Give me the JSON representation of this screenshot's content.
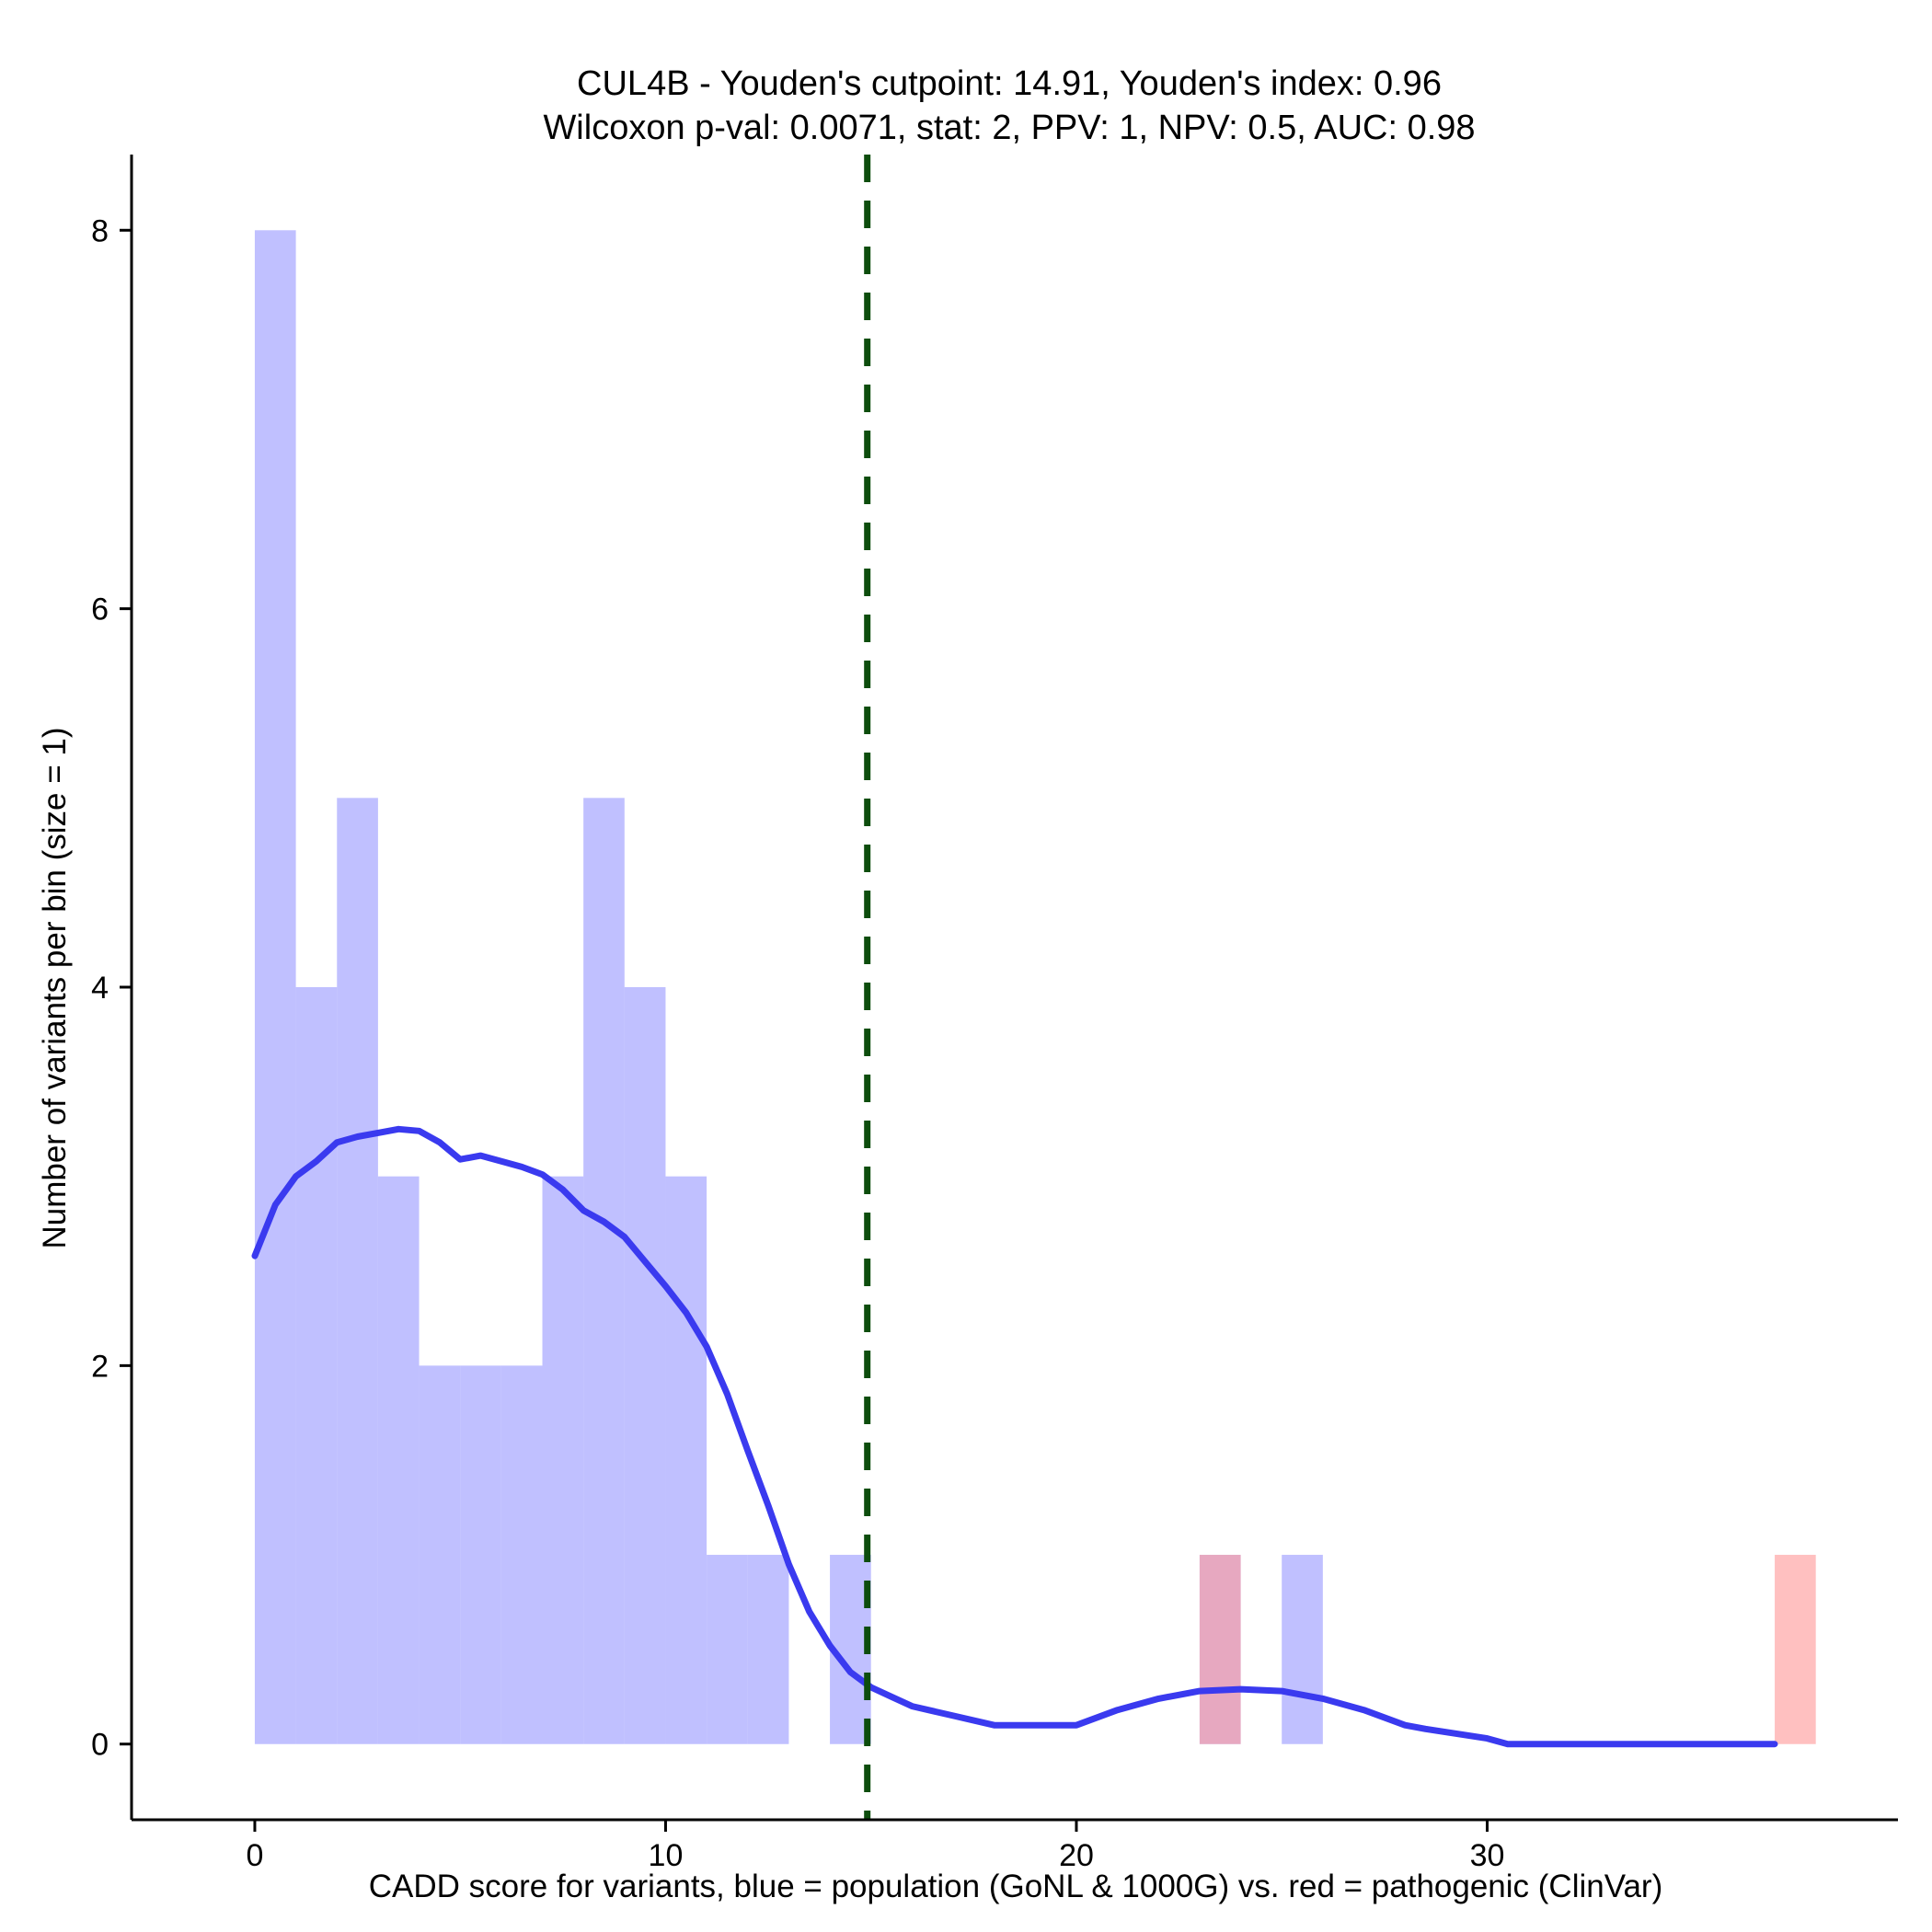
{
  "chart_data": {
    "type": "bar",
    "title_line1": "CUL4B - Youden's cutpoint: 14.91, Youden's index: 0.96",
    "title_line2": "Wilcoxon p-val: 0.0071, stat: 2, PPV: 1, NPV: 0.5, AUC: 0.98",
    "xlabel": "CADD score for variants, blue = population (GoNL & 1000G) vs. red = pathogenic (ClinVar)",
    "ylabel": "Number of variants per bin (size = 1)",
    "xlim": [
      -3,
      40
    ],
    "ylim": [
      -0.4,
      8.4
    ],
    "x_ticks": [
      0,
      10,
      20,
      30
    ],
    "y_ticks": [
      0,
      2,
      4,
      6,
      8
    ],
    "bin_width": 1,
    "cutpoint": 14.91,
    "series": [
      {
        "name": "population (GoNL & 1000G)",
        "color": "#9999ff",
        "opacity": 0.62,
        "bins": [
          {
            "x0": 0,
            "count": 8
          },
          {
            "x0": 1,
            "count": 4
          },
          {
            "x0": 2,
            "count": 5
          },
          {
            "x0": 3,
            "count": 3
          },
          {
            "x0": 4,
            "count": 2
          },
          {
            "x0": 5,
            "count": 2
          },
          {
            "x0": 6,
            "count": 2
          },
          {
            "x0": 7,
            "count": 3
          },
          {
            "x0": 8,
            "count": 5
          },
          {
            "x0": 9,
            "count": 4
          },
          {
            "x0": 10,
            "count": 3
          },
          {
            "x0": 11,
            "count": 1
          },
          {
            "x0": 12,
            "count": 1
          },
          {
            "x0": 14,
            "count": 1
          },
          {
            "x0": 23,
            "count": 1
          },
          {
            "x0": 25,
            "count": 1
          }
        ]
      },
      {
        "name": "pathogenic (ClinVar)",
        "color": "#ff9999",
        "opacity": 0.62,
        "bins": [
          {
            "x0": 23,
            "count": 1
          },
          {
            "x0": 37,
            "count": 1
          }
        ]
      }
    ],
    "density": {
      "name": "population density (scaled)",
      "color": "#3a3aef",
      "x": [
        0,
        0.5,
        1,
        1.5,
        2,
        2.5,
        3,
        3.5,
        4,
        4.5,
        5,
        5.5,
        6,
        6.5,
        7,
        7.5,
        8,
        8.5,
        9,
        9.5,
        10,
        10.5,
        11,
        11.5,
        12,
        12.5,
        13,
        13.5,
        14,
        14.5,
        15,
        15.5,
        16,
        17,
        18,
        19,
        20,
        21,
        22,
        23,
        24,
        25,
        26,
        27,
        28,
        28.5,
        30,
        30.5,
        32,
        34,
        36,
        37
      ],
      "y": [
        2.58,
        2.85,
        3.0,
        3.08,
        3.18,
        3.21,
        3.23,
        3.25,
        3.24,
        3.18,
        3.09,
        3.11,
        3.08,
        3.05,
        3.01,
        2.93,
        2.82,
        2.76,
        2.68,
        2.55,
        2.42,
        2.28,
        2.1,
        1.85,
        1.55,
        1.26,
        0.95,
        0.7,
        0.52,
        0.38,
        0.3,
        0.25,
        0.2,
        0.15,
        0.1,
        0.1,
        0.1,
        0.18,
        0.24,
        0.28,
        0.29,
        0.28,
        0.24,
        0.18,
        0.1,
        0.08,
        0.03,
        0.0,
        0.0,
        0.0,
        0.0,
        0.0
      ]
    },
    "cutpoint_color": "#0d4d0d"
  }
}
